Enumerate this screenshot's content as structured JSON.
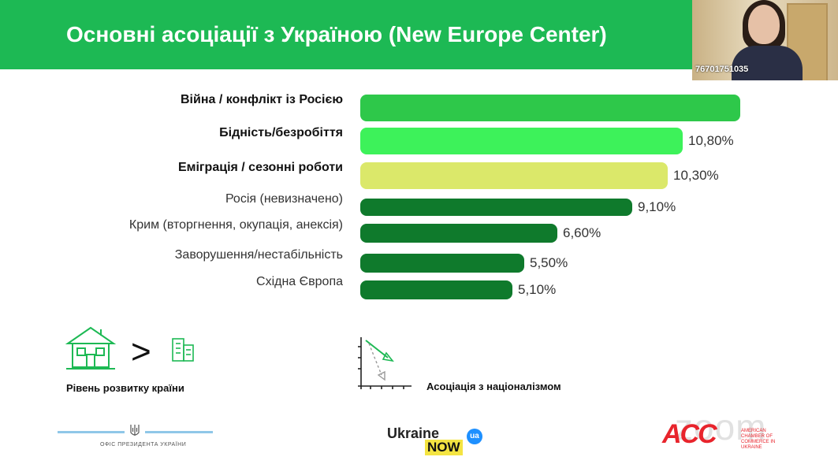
{
  "header": {
    "title": "Основні асоціації з Україною (New Europe Center)"
  },
  "video": {
    "participant_id": "76701751035"
  },
  "chart_data": {
    "type": "bar",
    "orientation": "horizontal",
    "categories": [
      "Війна / конфлікт із Росією",
      "Бідність/безробіття",
      "Еміграція / сезонні роботи",
      "Росія (невизначено)",
      "Крим (вторгнення, окупація, анексія)",
      "Заворушення/нестабільність",
      "Східна Європа"
    ],
    "values": [
      null,
      10.8,
      10.3,
      9.1,
      6.6,
      5.5,
      5.1
    ],
    "value_labels": [
      "",
      "10,80%",
      "10,30%",
      "9,10%",
      "6,60%",
      "5,50%",
      "5,10%"
    ],
    "bold": [
      true,
      true,
      true,
      false,
      false,
      false,
      false
    ],
    "colors": [
      "#2ec84a",
      "#3df25a",
      "#dbe86a",
      "#0f7a2c",
      "#0f7a2c",
      "#0f7a2c",
      "#0f7a2c"
    ],
    "title": "",
    "xlabel": "",
    "ylabel": ""
  },
  "icons": {
    "house": "house-icon",
    "buildings": "buildings-icon",
    "chart": "decline-chart-icon",
    "greater_than": ">"
  },
  "captions": {
    "development": "Рівень розвитку країни",
    "nationalism": "Асоціація з націоналізмом"
  },
  "footer": {
    "office": "ОФІС ПРЕЗИДЕНТА УКРАЇНИ",
    "ukraine": "Ukraine",
    "now": "NOW",
    "ua": "ua",
    "acc": "ACC",
    "acc_sub": "AMERICAN CHAMBER OF COMMERCE IN UKRAINE",
    "zoom": "zoom"
  },
  "colors": {
    "accent": "#1db954"
  }
}
